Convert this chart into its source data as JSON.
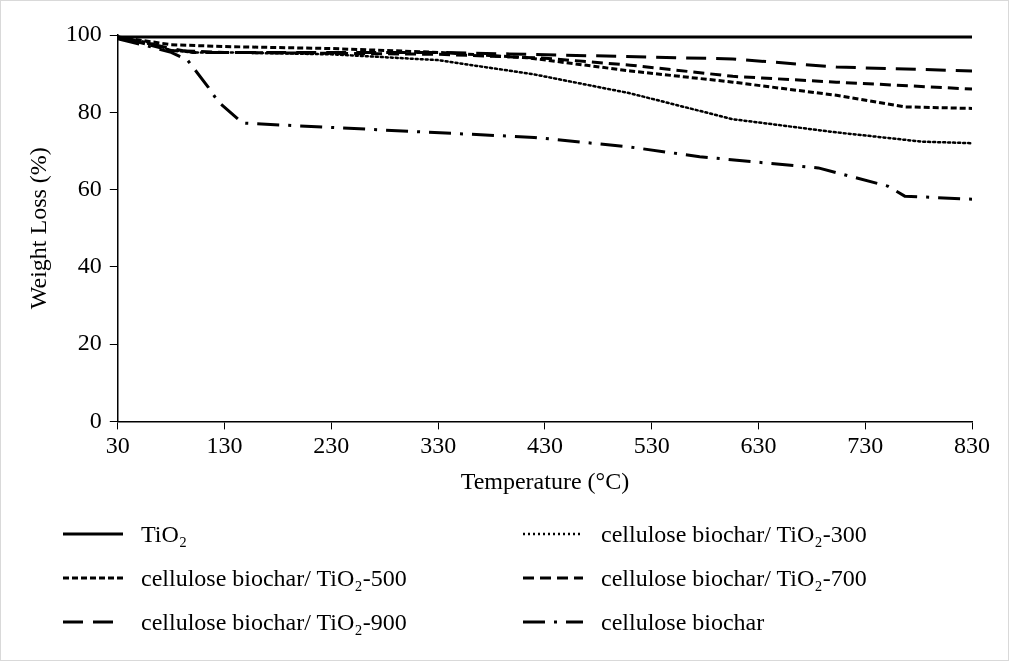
{
  "chart_data": {
    "type": "line",
    "xlabel": "Temperature (°C)",
    "ylabel": "Weight Loss (%)",
    "xlim": [
      30,
      830
    ],
    "xticks": [
      30,
      130,
      230,
      330,
      430,
      530,
      630,
      730,
      830
    ],
    "ylim": [
      0,
      100
    ],
    "yticks": [
      0,
      20,
      40,
      60,
      80,
      100
    ],
    "grid": false,
    "legend": "bottom",
    "marker": "none",
    "series": [
      {
        "name": "TiO₂",
        "color": "#000000",
        "line_style": "solid",
        "x": [
          30,
          80,
          130,
          330,
          530,
          730,
          830
        ],
        "values": [
          99.5,
          99.5,
          99.5,
          99.5,
          99.5,
          99.5,
          99.5
        ]
      },
      {
        "name": "cellulose biochar/ TiO₂-300",
        "color": "#000000",
        "line_style": "dotted",
        "x": [
          30,
          60,
          80,
          100,
          130,
          230,
          330,
          420,
          510,
          606,
          703,
          783,
          830
        ],
        "values": [
          99.5,
          98,
          96,
          95.5,
          95.5,
          95,
          93.5,
          89.8,
          84.9,
          78.2,
          74.8,
          72.4,
          72
        ]
      },
      {
        "name": "cellulose biochar/ TiO₂-500",
        "color": "#000000",
        "line_style": "dashed",
        "x": [
          30,
          80,
          130,
          230,
          330,
          414,
          510,
          606,
          703,
          767,
          830
        ],
        "values": [
          99.5,
          97.5,
          97,
          96.5,
          95.5,
          94.1,
          90.7,
          87.8,
          84.4,
          81.4,
          81
        ]
      },
      {
        "name": "cellulose biochar/ TiO₂-700",
        "color": "#000000",
        "line_style": "dashed",
        "x": [
          30,
          80,
          130,
          330,
          430,
          510,
          606,
          703,
          830
        ],
        "values": [
          99.5,
          96,
          95.5,
          95,
          94,
          92.2,
          89.3,
          87.8,
          86
        ]
      },
      {
        "name": "cellulose biochar/ TiO₂-900",
        "color": "#000000",
        "line_style": "dashed",
        "x": [
          30,
          80,
          100,
          130,
          330,
          414,
          606,
          703,
          830
        ],
        "values": [
          99.5,
          96.5,
          95.5,
          95.5,
          95.5,
          95,
          93.8,
          91.7,
          90.7
        ]
      },
      {
        "name": "cellulose biochar",
        "color": "#000000",
        "line_style": "dashdot",
        "x": [
          30,
          60,
          80,
          95,
          115,
          124,
          147,
          420,
          510,
          575,
          686,
          751,
          767,
          830
        ],
        "values": [
          99,
          97,
          95.5,
          93.6,
          86.4,
          82.7,
          77.2,
          73.5,
          71,
          68.5,
          65.6,
          60.9,
          58.3,
          57.5
        ]
      }
    ]
  }
}
